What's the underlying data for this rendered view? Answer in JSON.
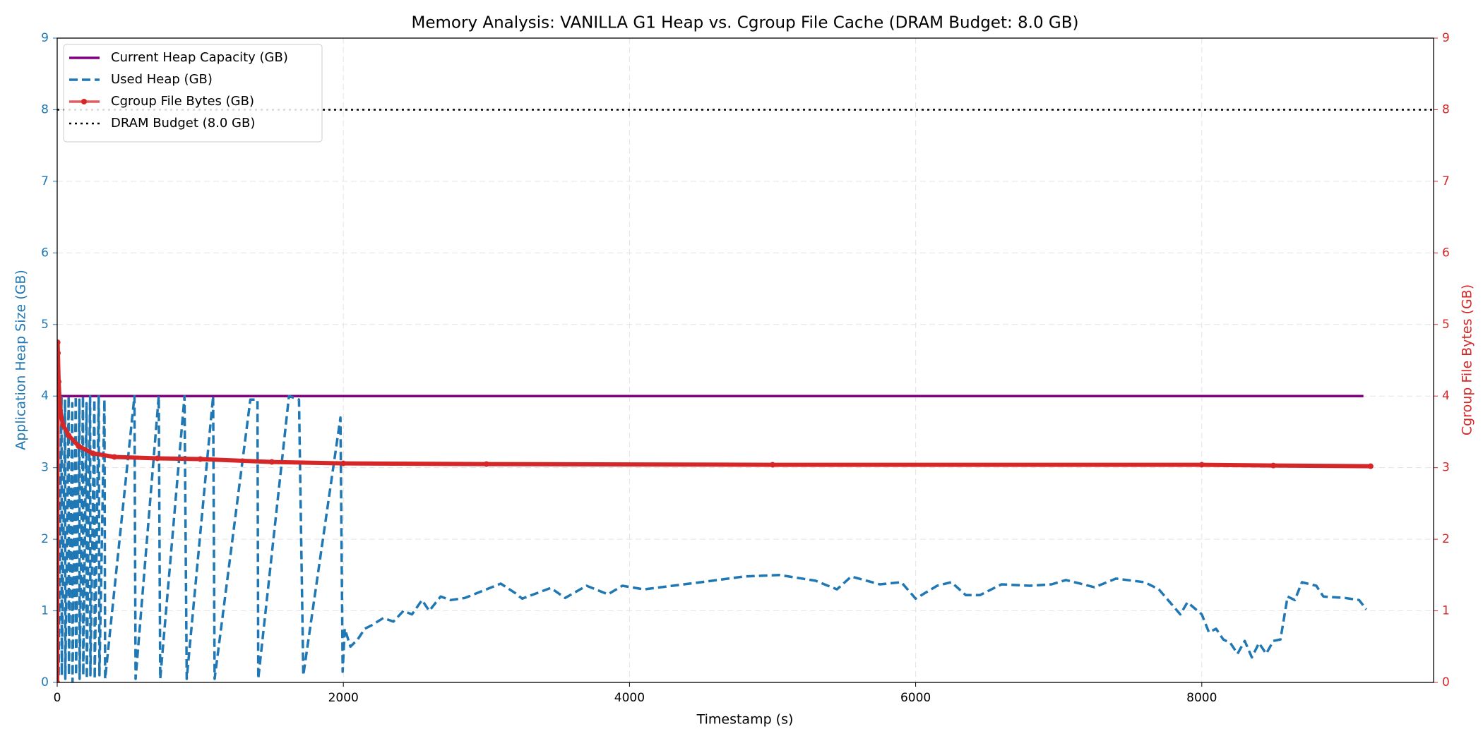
{
  "chart_data": {
    "type": "line",
    "title": "Memory Analysis: VANILLA G1 Heap vs. Cgroup File Cache (DRAM Budget: 8.0 GB)",
    "xlabel": "Timestamp (s)",
    "ylabel": "Application Heap Size (GB)",
    "y2label": "Cgroup File Bytes (GB)",
    "xlim": [
      0,
      9620
    ],
    "ylim": [
      0,
      9
    ],
    "y2lim": [
      0,
      9
    ],
    "xticks": [
      0,
      2000,
      4000,
      6000,
      8000
    ],
    "yticks": [
      0,
      1,
      2,
      3,
      4,
      5,
      6,
      7,
      8,
      9
    ],
    "y2ticks": [
      0,
      1,
      2,
      3,
      4,
      5,
      6,
      7,
      8,
      9
    ],
    "grid": true,
    "legend": "upper left",
    "series": [
      {
        "name": "Current Heap Capacity (GB)",
        "color": "#800080",
        "style": "solid",
        "x": [
          0,
          9130
        ],
        "values": [
          4.0,
          4.0
        ]
      },
      {
        "name": "Used Heap (GB)",
        "color": "#1f77b4",
        "style": "dashed",
        "x": [
          10,
          30,
          32,
          55,
          57,
          80,
          82,
          105,
          107,
          130,
          132,
          155,
          157,
          180,
          182,
          205,
          207,
          230,
          232,
          260,
          262,
          290,
          295,
          330,
          335,
          540,
          548,
          710,
          720,
          890,
          905,
          1090,
          1100,
          1350,
          1400,
          1405,
          1620,
          1690,
          1720,
          1980,
          1995,
          2010,
          2050,
          2100,
          2150,
          2200,
          2280,
          2350,
          2420,
          2480,
          2550,
          2600,
          2680,
          2750,
          2850,
          3000,
          3100,
          3200,
          3250,
          3450,
          3550,
          3700,
          3850,
          3950,
          4100,
          4500,
          4800,
          5050,
          5300,
          5450,
          5550,
          5750,
          5900,
          6000,
          6150,
          6250,
          6350,
          6450,
          6600,
          6800,
          6950,
          7050,
          7250,
          7400,
          7600,
          7700,
          7850,
          7900,
          8000,
          8050,
          8100,
          8150,
          8200,
          8250,
          8300,
          8350,
          8400,
          8450,
          8500,
          8550,
          8600,
          8650,
          8700,
          8800,
          8850,
          9000,
          9100,
          9150
        ],
        "values": [
          0.1,
          4.0,
          0.1,
          3.95,
          0.05,
          4.0,
          0.1,
          3.9,
          0.0,
          4.0,
          0.1,
          3.95,
          0.05,
          4.0,
          0.1,
          3.9,
          0.05,
          4.0,
          0.1,
          3.95,
          0.05,
          4.0,
          0.1,
          3.95,
          0.05,
          4.0,
          0.05,
          4.0,
          0.05,
          4.0,
          0.05,
          4.0,
          0.05,
          3.95,
          3.95,
          0.05,
          4.0,
          3.95,
          0.1,
          3.7,
          0.15,
          0.75,
          0.5,
          0.6,
          0.75,
          0.8,
          0.9,
          0.85,
          1.0,
          0.95,
          1.15,
          1.0,
          1.2,
          1.15,
          1.18,
          1.3,
          1.38,
          1.25,
          1.17,
          1.32,
          1.18,
          1.35,
          1.23,
          1.35,
          1.3,
          1.4,
          1.48,
          1.5,
          1.42,
          1.3,
          1.48,
          1.37,
          1.4,
          1.17,
          1.35,
          1.4,
          1.22,
          1.22,
          1.37,
          1.35,
          1.37,
          1.43,
          1.33,
          1.45,
          1.4,
          1.3,
          0.95,
          1.12,
          0.95,
          0.7,
          0.75,
          0.6,
          0.55,
          0.4,
          0.58,
          0.35,
          0.55,
          0.4,
          0.58,
          0.6,
          1.2,
          1.15,
          1.4,
          1.35,
          1.2,
          1.18,
          1.15,
          1.02
        ]
      },
      {
        "name": "Cgroup File Bytes (GB)",
        "color": "#d62728",
        "style": "marker",
        "axis": "y2",
        "x": [
          0,
          1,
          3,
          5,
          10,
          20,
          40,
          80,
          150,
          250,
          400,
          700,
          1000,
          1500,
          2000,
          3000,
          5000,
          8000,
          8500,
          9180
        ],
        "values": [
          0.0,
          2.5,
          4.75,
          4.6,
          4.2,
          3.8,
          3.6,
          3.45,
          3.3,
          3.2,
          3.15,
          3.13,
          3.12,
          3.08,
          3.06,
          3.05,
          3.04,
          3.04,
          3.03,
          3.02
        ]
      }
    ],
    "hlines": [
      {
        "name": "DRAM Budget (8.0 GB)",
        "value": 8,
        "color": "#000000",
        "style": "dotted"
      }
    ]
  }
}
